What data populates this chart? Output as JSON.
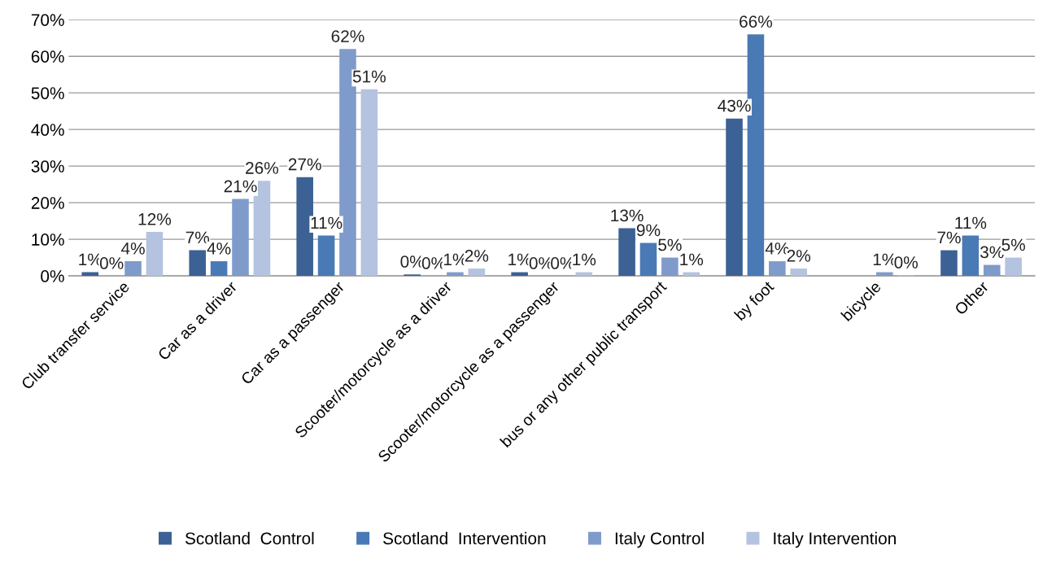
{
  "chart_data": {
    "type": "bar",
    "categories": [
      "Club transfer service",
      "Car as a driver",
      "Car as a passenger",
      "Scooter/motorcycle as a driver",
      "Scooter/motorcycle as a passenger",
      "bus or any other public transport",
      "by foot",
      "bicycle",
      "Other"
    ],
    "series": [
      {
        "name": "Scotland  Control",
        "color": "#3c6194",
        "values": [
          1,
          7,
          27,
          0.4,
          1,
          13,
          43,
          null,
          7
        ],
        "value_labels": [
          "1%",
          "7%",
          "27%",
          "0%",
          "1%",
          "13%",
          "43%",
          null,
          "7%"
        ]
      },
      {
        "name": "Scotland  Intervention",
        "color": "#4a7ab5",
        "values": [
          0,
          4,
          11,
          0,
          0,
          9,
          66,
          null,
          11
        ],
        "value_labels": [
          "0%",
          "4%",
          "11%",
          "0%",
          "0%",
          "9%",
          "66%",
          null,
          "11%"
        ]
      },
      {
        "name": "Italy Control",
        "color": "#7f9bcb",
        "values": [
          4,
          21,
          62,
          1,
          0,
          5,
          4,
          1,
          3
        ],
        "value_labels": [
          "4%",
          "21%",
          "62%",
          "1%",
          "0%",
          "5%",
          "4%",
          "1%",
          "3%"
        ]
      },
      {
        "name": "Italy Intervention",
        "color": "#b4c3e0",
        "values": [
          12,
          26,
          51,
          2,
          1,
          1,
          2,
          0.2,
          5
        ],
        "value_labels": [
          "12%",
          "26%",
          "51%",
          "2%",
          "1%",
          "1%",
          "2%",
          "0%",
          "5%"
        ]
      }
    ],
    "ylim": [
      0,
      70
    ],
    "yticks": [
      {
        "value": 0,
        "label": "0%"
      },
      {
        "value": 10,
        "label": "10%"
      },
      {
        "value": 20,
        "label": "20%"
      },
      {
        "value": 30,
        "label": "30%"
      },
      {
        "value": 40,
        "label": "40%"
      },
      {
        "value": 50,
        "label": "50%"
      },
      {
        "value": 60,
        "label": "60%"
      },
      {
        "value": 70,
        "label": "70%"
      }
    ],
    "grid": "y",
    "legend": "bottom"
  }
}
